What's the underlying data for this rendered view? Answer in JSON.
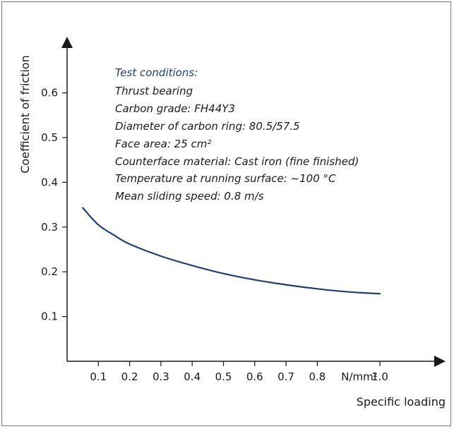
{
  "chart_data": {
    "type": "line",
    "title": "",
    "xlabel": "Specific loading",
    "ylabel": "Coefficient of friction",
    "x_unit_label": "N/mm²",
    "xlim": [
      0,
      1.05
    ],
    "ylim": [
      0,
      0.7
    ],
    "x_ticks": [
      0.1,
      0.2,
      0.3,
      0.4,
      0.5,
      0.6,
      0.7,
      0.8,
      1.0
    ],
    "x_tick_labels": [
      "0.1",
      "0.2",
      "0.3",
      "0.4",
      "0.5",
      "0.6",
      "0.7",
      "0.8",
      "1.0"
    ],
    "y_ticks": [
      0.1,
      0.2,
      0.3,
      0.4,
      0.5,
      0.6
    ],
    "y_tick_labels": [
      "0.1",
      "0.2",
      "0.3",
      "0.4",
      "0.5",
      "0.6"
    ],
    "grid": false,
    "legend": "none",
    "series": [
      {
        "color": "#1f3f73",
        "x": [
          0.05,
          0.1,
          0.15,
          0.2,
          0.3,
          0.4,
          0.5,
          0.6,
          0.7,
          0.8,
          0.9,
          1.0
        ],
        "y": [
          0.343,
          0.305,
          0.282,
          0.262,
          0.235,
          0.214,
          0.196,
          0.182,
          0.171,
          0.162,
          0.155,
          0.151
        ]
      }
    ],
    "annotations": {
      "heading": "Test conditions:",
      "lines": [
        "Thrust bearing",
        "Carbon grade: FH44Y3",
        "Diameter of carbon ring: 80.5/57.5",
        "Face area: 25 cm²",
        "Counterface material: Cast iron (fine finished)",
        "Temperature at running surface: ~100 °C",
        "Mean sliding speed: 0.8 m/s"
      ]
    },
    "colors": {
      "curve": "#1f3f73",
      "heading": "#1f3f73",
      "axis": "#1a1a1a",
      "frame": "#7a7a7a"
    }
  }
}
